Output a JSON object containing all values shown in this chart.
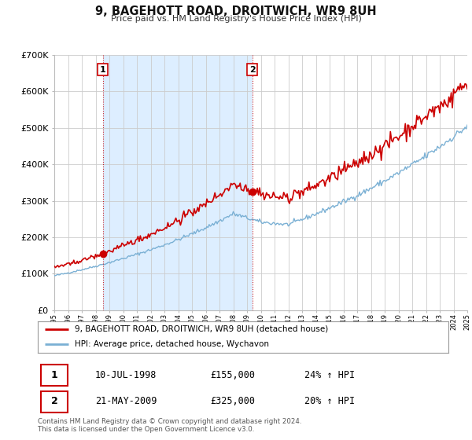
{
  "title": "9, BAGEHOTT ROAD, DROITWICH, WR9 8UH",
  "subtitle": "Price paid vs. HM Land Registry's House Price Index (HPI)",
  "plot_bg_color": "#ffffff",
  "fig_bg_color": "#ffffff",
  "red_line_color": "#cc0000",
  "blue_line_color": "#7ab0d4",
  "shaded_color": "#ddeeff",
  "grid_color": "#cccccc",
  "ylim": [
    0,
    700000
  ],
  "yticks": [
    0,
    100000,
    200000,
    300000,
    400000,
    500000,
    600000,
    700000
  ],
  "ytick_labels": [
    "£0",
    "£100K",
    "£200K",
    "£300K",
    "£400K",
    "£500K",
    "£600K",
    "£700K"
  ],
  "sale1_year": 1998.53,
  "sale1_price": 155000,
  "sale1_label": "1",
  "sale1_date": "10-JUL-1998",
  "sale1_pct": "24% ↑ HPI",
  "sale2_year": 2009.38,
  "sale2_price": 325000,
  "sale2_label": "2",
  "sale2_date": "21-MAY-2009",
  "sale2_pct": "20% ↑ HPI",
  "legend_line1": "9, BAGEHOTT ROAD, DROITWICH, WR9 8UH (detached house)",
  "legend_line2": "HPI: Average price, detached house, Wychavon",
  "footer": "Contains HM Land Registry data © Crown copyright and database right 2024.\nThis data is licensed under the Open Government Licence v3.0."
}
